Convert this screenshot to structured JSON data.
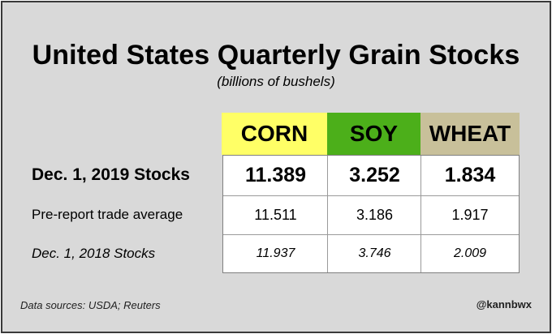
{
  "chart_data": {
    "type": "table",
    "title": "United States Quarterly Grain Stocks",
    "subtitle": "(billions of bushels)",
    "columns": [
      {
        "label": "CORN",
        "color": "#ffff66"
      },
      {
        "label": "SOY",
        "color": "#4caf1a"
      },
      {
        "label": "WHEAT",
        "color": "#c8c09a"
      }
    ],
    "rows": [
      {
        "label": "Dec. 1, 2019 Stocks",
        "style": "bold",
        "values": [
          "11.389",
          "3.252",
          "1.834"
        ]
      },
      {
        "label": "Pre-report trade average",
        "style": "normal",
        "values": [
          "11.511",
          "3.186",
          "1.917"
        ]
      },
      {
        "label": "Dec. 1, 2018 Stocks",
        "style": "italic",
        "values": [
          "11.937",
          "3.746",
          "2.009"
        ]
      }
    ]
  },
  "footer": {
    "source": "Data sources: USDA; Reuters",
    "handle": "@kannbwx"
  }
}
